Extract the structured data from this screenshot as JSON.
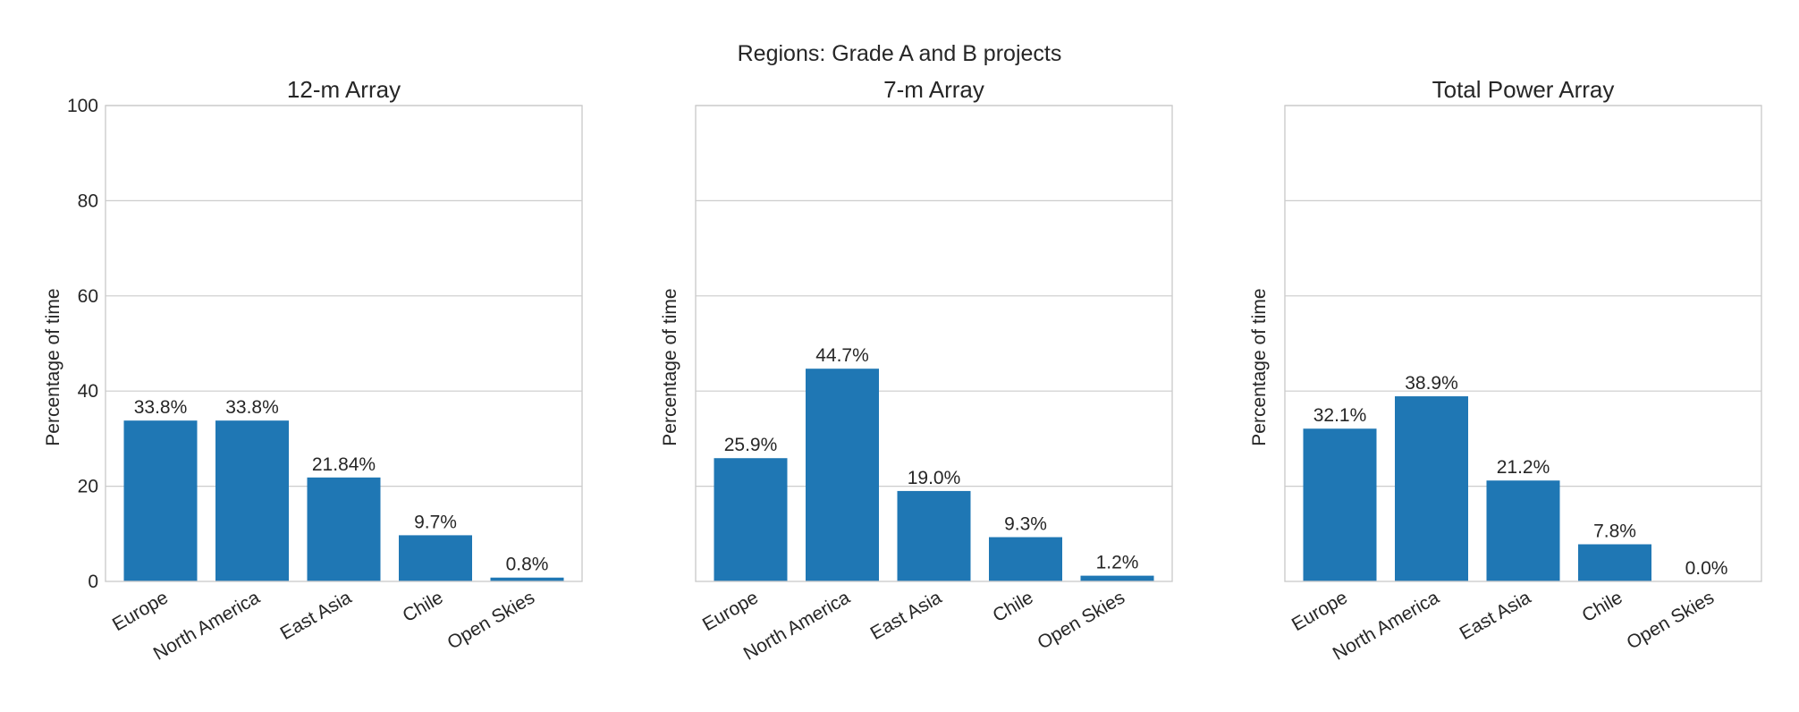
{
  "figure": {
    "suptitle": "Regions: Grade A and B projects"
  },
  "chart_data": [
    {
      "type": "bar",
      "title": "12-m Array",
      "ylabel": "Percentage of time",
      "categories": [
        "Europe",
        "North America",
        "East Asia",
        "Chile",
        "Open Skies"
      ],
      "values": [
        33.8,
        33.8,
        21.84,
        9.7,
        0.8
      ],
      "value_labels": [
        "33.8%",
        "33.8%",
        "21.84%",
        "9.7%",
        "0.8%"
      ],
      "ylim": [
        0,
        100
      ],
      "yticks": [
        0,
        20,
        40,
        60,
        80,
        100
      ],
      "show_ytick_labels": true,
      "grid": true,
      "bar_color": "#1f77b4"
    },
    {
      "type": "bar",
      "title": "7-m Array",
      "ylabel": "Percentage of time",
      "categories": [
        "Europe",
        "North America",
        "East Asia",
        "Chile",
        "Open Skies"
      ],
      "values": [
        25.9,
        44.7,
        19.0,
        9.3,
        1.2
      ],
      "value_labels": [
        "25.9%",
        "44.7%",
        "19.0%",
        "9.3%",
        "1.2%"
      ],
      "ylim": [
        0,
        100
      ],
      "yticks": [
        0,
        20,
        40,
        60,
        80,
        100
      ],
      "show_ytick_labels": false,
      "grid": true,
      "bar_color": "#1f77b4"
    },
    {
      "type": "bar",
      "title": "Total Power Array",
      "ylabel": "Percentage of time",
      "categories": [
        "Europe",
        "North America",
        "East Asia",
        "Chile",
        "Open Skies"
      ],
      "values": [
        32.1,
        38.9,
        21.2,
        7.8,
        0.0
      ],
      "value_labels": [
        "32.1%",
        "38.9%",
        "21.2%",
        "7.8%",
        "0.0%"
      ],
      "ylim": [
        0,
        100
      ],
      "yticks": [
        0,
        20,
        40,
        60,
        80,
        100
      ],
      "show_ytick_labels": false,
      "grid": true,
      "bar_color": "#1f77b4"
    }
  ]
}
